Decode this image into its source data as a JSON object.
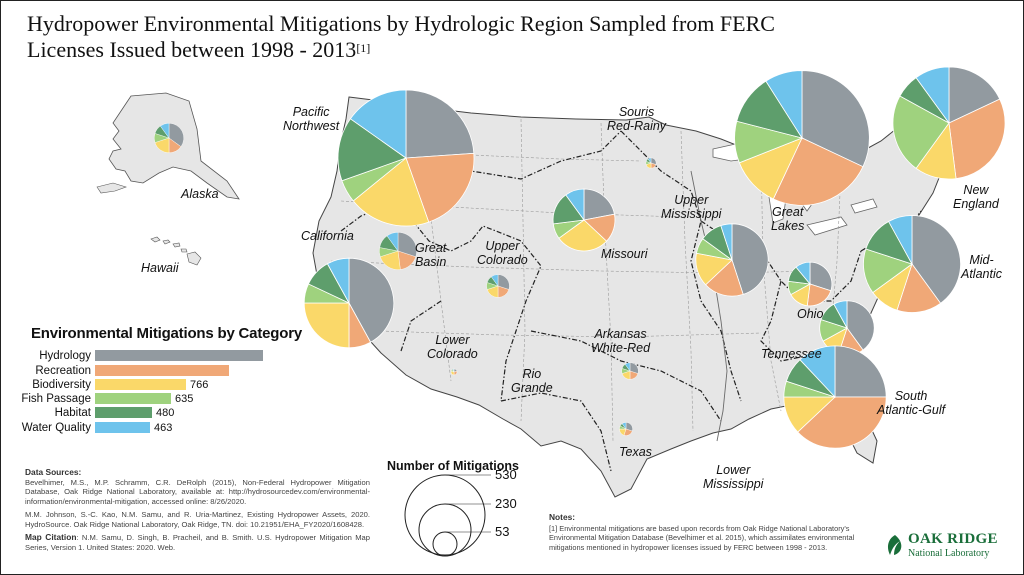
{
  "title": "Hydropower Environmental Mitigations by Hydrologic Region Sampled from FERC Licenses Issued between 1998 - 2013",
  "title_note": "[1]",
  "colors": {
    "Hydrology": "#929aa0",
    "Recreation": "#f0a877",
    "Biodiversity": "#fad869",
    "Fish Passage": "#9fd27e",
    "Habitat": "#5e9e6c",
    "Water Quality": "#6ec3ec",
    "land": "#e6e6e6",
    "water": "#ffffff",
    "boundary": "#333333"
  },
  "category_legend": {
    "title": "Environmental Mitigations by Category",
    "categories": [
      "Hydrology",
      "Recreation",
      "Biodiversity",
      "Fish Passage",
      "Habitat",
      "Water Quality"
    ],
    "values": [
      null,
      null,
      766,
      635,
      480,
      463
    ],
    "value_labels": [
      "",
      "",
      "766",
      "635",
      "480",
      "463"
    ],
    "bar_fraction": [
      1.0,
      0.8,
      0.54,
      0.45,
      0.34,
      0.33
    ]
  },
  "size_legend": {
    "title": "Number of Mitigations",
    "values": [
      530,
      230,
      53
    ],
    "labels": [
      "530",
      "230",
      "53"
    ]
  },
  "regions": [
    {
      "name": "Pacific Northwest",
      "label_lines": [
        "Pacific",
        "Northwest"
      ],
      "shares": [
        0.22,
        0.19,
        0.18,
        0.05,
        0.14,
        0.14
      ],
      "total": 530
    },
    {
      "name": "California",
      "label_lines": [
        "California"
      ],
      "shares": [
        0.42,
        0.08,
        0.25,
        0.07,
        0.1,
        0.08
      ],
      "total": 230
    },
    {
      "name": "Great Basin",
      "label_lines": [
        "Great",
        "Basin"
      ],
      "shares": [
        0.3,
        0.18,
        0.22,
        0.08,
        0.12,
        0.1
      ],
      "total": 40
    },
    {
      "name": "Upper Colorado",
      "label_lines": [
        "Upper",
        "Colorado"
      ],
      "shares": [
        0.3,
        0.2,
        0.2,
        0.1,
        0.1,
        0.1
      ],
      "total": 15
    },
    {
      "name": "Lower Colorado",
      "label_lines": [
        "Lower",
        "Colorado"
      ],
      "shares": [
        0.2,
        0.3,
        0.3,
        0.1,
        0.05,
        0.05
      ],
      "total": 1
    },
    {
      "name": "Alaska",
      "label_lines": [
        "Alaska"
      ],
      "shares": [
        0.35,
        0.15,
        0.2,
        0.1,
        0.1,
        0.1
      ],
      "total": 25
    },
    {
      "name": "Missouri",
      "label_lines": [
        "Missouri"
      ],
      "shares": [
        0.22,
        0.15,
        0.28,
        0.08,
        0.17,
        0.1
      ],
      "total": 110
    },
    {
      "name": "Souris Red-Rainy",
      "label_lines": [
        "Souris",
        "Red-Rainy"
      ],
      "shares": [
        0.3,
        0.2,
        0.2,
        0.1,
        0.1,
        0.1
      ],
      "total": 3
    },
    {
      "name": "Upper Mississippi",
      "label_lines": [
        "Upper",
        "Mississippi"
      ],
      "shares": [
        0.45,
        0.18,
        0.15,
        0.07,
        0.1,
        0.05
      ],
      "total": 150
    },
    {
      "name": "Great Lakes",
      "label_lines": [
        "Great",
        "Lakes"
      ],
      "shares": [
        0.32,
        0.25,
        0.12,
        0.1,
        0.12,
        0.09
      ],
      "total": 520
    },
    {
      "name": "New England",
      "label_lines": [
        "New",
        "England"
      ],
      "shares": [
        0.18,
        0.3,
        0.12,
        0.23,
        0.07,
        0.1
      ],
      "total": 360
    },
    {
      "name": "Mid-Atlantic",
      "label_lines": [
        "Mid-",
        "Atlantic"
      ],
      "shares": [
        0.4,
        0.15,
        0.1,
        0.15,
        0.12,
        0.08
      ],
      "total": 270
    },
    {
      "name": "Ohio",
      "label_lines": [
        "Ohio"
      ],
      "shares": [
        0.3,
        0.22,
        0.15,
        0.1,
        0.12,
        0.11
      ],
      "total": 55
    },
    {
      "name": "Tennessee",
      "label_lines": [
        "Tennessee"
      ],
      "shares": [
        0.4,
        0.15,
        0.12,
        0.13,
        0.12,
        0.08
      ],
      "total": 85
    },
    {
      "name": "South Atlantic-Gulf",
      "label_lines": [
        "South",
        "Atlantic-Gulf"
      ],
      "shares": [
        0.25,
        0.38,
        0.12,
        0.05,
        0.08,
        0.12
      ],
      "total": 300
    },
    {
      "name": "Arkansas White-Red",
      "label_lines": [
        "Arkansas",
        "White-Red"
      ],
      "shares": [
        0.3,
        0.2,
        0.2,
        0.1,
        0.1,
        0.1
      ],
      "total": 8
    },
    {
      "name": "Rio Grande",
      "label_lines": [
        "Rio",
        "Grande"
      ],
      "shares": [],
      "total": 0
    },
    {
      "name": "Texas",
      "label_lines": [
        "Texas"
      ],
      "shares": [
        0.3,
        0.25,
        0.2,
        0.08,
        0.07,
        0.1
      ],
      "total": 5
    },
    {
      "name": "Lower Mississippi",
      "label_lines": [
        "Lower",
        "Mississippi"
      ],
      "shares": [],
      "total": 0
    }
  ],
  "extra_labels": {
    "hawaii": "Hawaii"
  },
  "sources": {
    "heading": "Data Sources:",
    "p1": "Bevelhimer, M.S., M.P. Schramm, C.R. DeRolph (2015), Non-Federal Hydropower Mitigation Database, Oak Ridge National Laboratory, available at: http://hydrosourcedev.com/environmental-information/environmental-mitigation, accessed online: 8/26/2020.",
    "p2": "M.M. Johnson, S.-C. Kao, N.M. Samu, and R. Uria-Martinez, Existing Hydropower Assets, 2020. HydroSource. Oak Ridge National Laboratory, Oak Ridge, TN. doi: 10.21951/EHA_FY2020/1608428.",
    "citation_heading": "Map Citation",
    "citation": ": N.M. Samu, D. Singh, B. Pracheil, and B. Smith. U.S. Hydropower Mitigation Map Series, Version 1. United States: 2020. Web."
  },
  "notes": {
    "heading": "Notes:",
    "text": "[1] Environmental mitigations are based upon records from Oak Ridge National Laboratory's Environmental Mitigation Database (Bevelhimer et al. 2015), which assimilates environmental mitigations mentioned in hydropower licenses issued by FERC between 1998 - 2013."
  },
  "logo": {
    "line1": "OAK RIDGE",
    "line2": "National Laboratory"
  }
}
